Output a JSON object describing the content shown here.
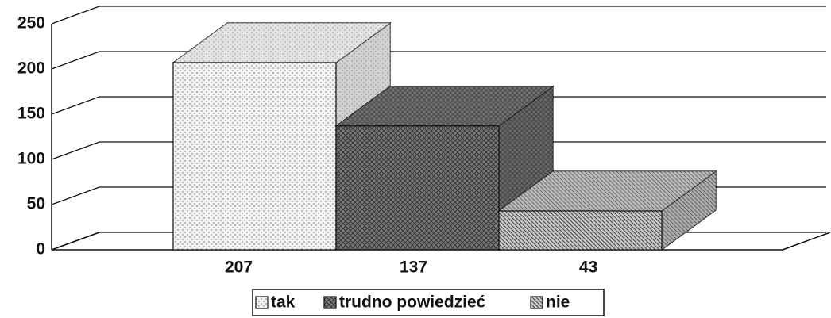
{
  "chart_data": {
    "type": "bar3d",
    "series": [
      {
        "name": "tak",
        "color": "#f2f2f2",
        "values": [
          207
        ]
      },
      {
        "name": "trudno powiedzieć",
        "color": "#7a7a7a",
        "values": [
          137
        ]
      },
      {
        "name": "nie",
        "color": "#c8c8c8",
        "values": [
          43
        ]
      }
    ],
    "ylim": [
      0,
      250
    ],
    "yticks": [
      0,
      50,
      100,
      150,
      200,
      250
    ],
    "grid": true,
    "legend": "bottom"
  }
}
